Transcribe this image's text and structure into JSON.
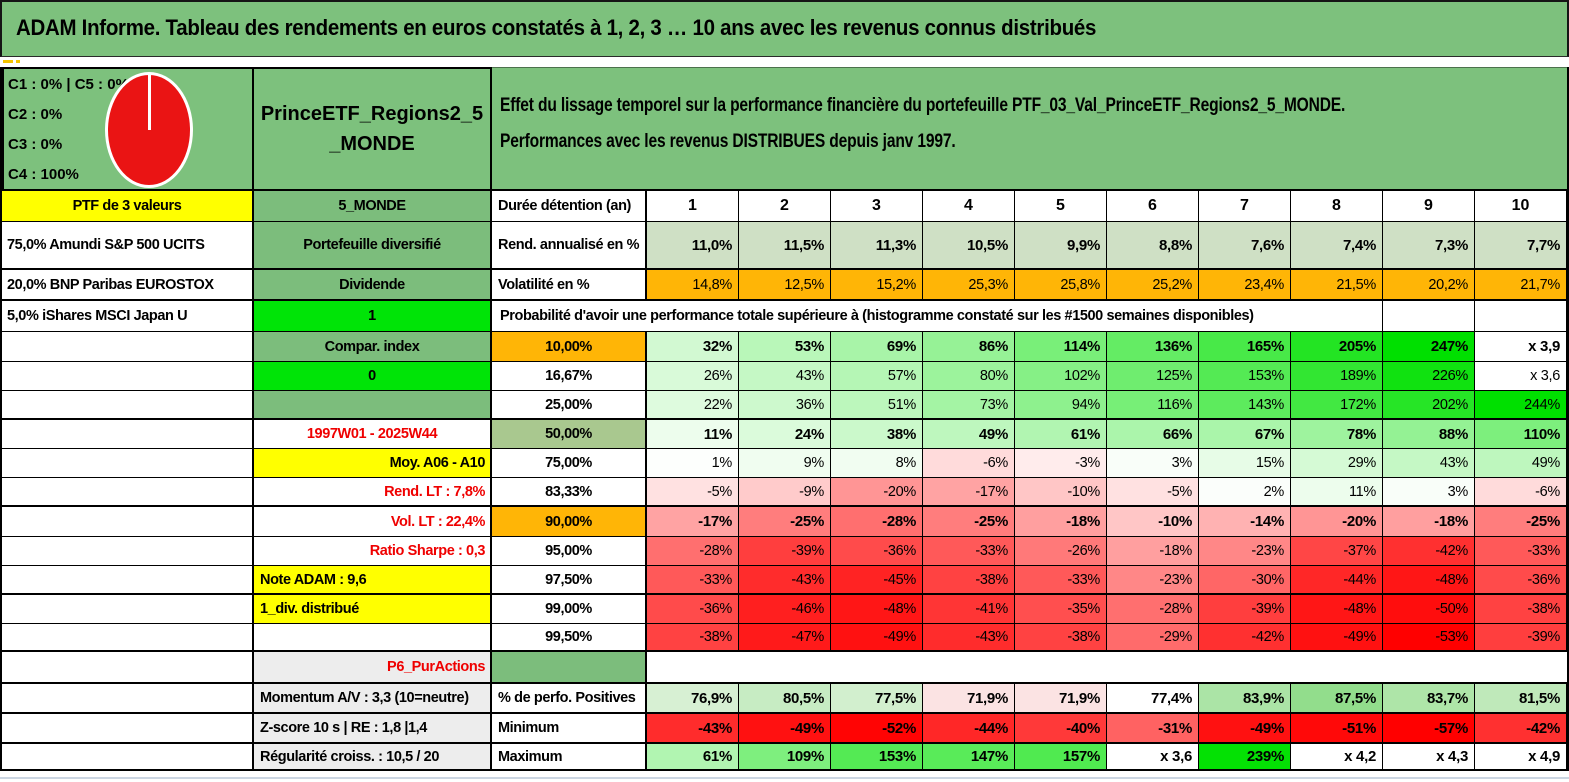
{
  "palette": {
    "header_green": "#7dc17d",
    "sage": "#7cbd7c",
    "sage50": "#a9c88f",
    "bright": "#00e407",
    "yellow": "#ffff00",
    "orange": "#ffb506",
    "gray": "#ededed",
    "rend_row": "#cfe0c5",
    "red_text": "#ef0000",
    "pie_red": "#ea1414",
    "max_green": "#00e000",
    "max_red": "#ff0000"
  },
  "title": "ADAM Informe. Tableau des rendements en euros constatés à 1, 2, 3 … 10 ans avec les revenus connus distribués",
  "header": {
    "allocations": [
      "C1 : 0% | C5 : 0%",
      "C2 : 0%",
      "C3 : 0%",
      "C4 : 100%"
    ],
    "pie": {
      "slices": [
        {
          "label": "C4",
          "value": "100%"
        }
      ],
      "color": "#ea1414"
    },
    "portfolio": "PrinceETF_Regions2_5_MONDE",
    "description": [
      "Effet du lissage temporel sur la performance financière du portefeuille PTF_03_Val_PrinceETF_Regions2_5_MONDE.",
      "Performances avec les revenus DISTRIBUES depuis janv 1997."
    ]
  },
  "rows": [
    {
      "type": "header",
      "a": {
        "t": "PTF de 3 valeurs",
        "bg": "yellow",
        "al": "c"
      },
      "b": {
        "t": "5_MONDE",
        "bg": "sage"
      },
      "c": {
        "t": "Durée détention (an)"
      },
      "values": [
        "1",
        "2",
        "3",
        "4",
        "5",
        "6",
        "7",
        "8",
        "9",
        "10"
      ]
    },
    {
      "type": "uniform",
      "cellbg": "rend_row",
      "bold": true,
      "a": {
        "t": "75,0% Amundi S&P 500 UCITS"
      },
      "b": {
        "t": "Portefeuille diversifié",
        "bg": "sage"
      },
      "c": {
        "t": "Rend. annualisé en %"
      },
      "values": [
        "11,0%",
        "11,5%",
        "11,3%",
        "10,5%",
        "9,9%",
        "8,8%",
        "7,6%",
        "7,4%",
        "7,3%",
        "7,7%"
      ]
    },
    {
      "type": "uniform",
      "cellbg": "orange",
      "bold": false,
      "a": {
        "t": "20,0% BNP Paribas EUROSTOX"
      },
      "b": {
        "t": "Dividende",
        "bg": "sage"
      },
      "c": {
        "t": "Volatilité en %"
      },
      "values": [
        "14,8%",
        "12,5%",
        "15,2%",
        "25,3%",
        "25,8%",
        "25,2%",
        "23,4%",
        "21,5%",
        "20,2%",
        "21,7%"
      ]
    },
    {
      "type": "banner",
      "a": {
        "t": "5,0% iShares MSCI Japan U"
      },
      "b": {
        "t": "1",
        "bg": "bright",
        "corner": true
      },
      "banner": "Probabilité d'avoir une performance totale supérieure à (histogramme constaté sur les #1500 semaines disponibles)"
    },
    {
      "type": "scale",
      "bold": true,
      "b": {
        "t": "Compar. index",
        "bg": "sage"
      },
      "c": {
        "t": "10,00%",
        "bg": "orange",
        "al": "c"
      },
      "values": [
        "32%",
        "53%",
        "69%",
        "86%",
        "114%",
        "136%",
        "165%",
        "205%",
        "247%",
        "x 3,9"
      ]
    },
    {
      "type": "scale",
      "b": {
        "t": "0",
        "bg": "bright",
        "corner": true
      },
      "c": {
        "t": "16,67%",
        "al": "c"
      },
      "values": [
        "26%",
        "43%",
        "57%",
        "80%",
        "102%",
        "125%",
        "153%",
        "189%",
        "226%",
        "x 3,6"
      ]
    },
    {
      "type": "scale",
      "b": {
        "t": "",
        "bg": "sage"
      },
      "c": {
        "t": "25,00%",
        "al": "c"
      },
      "values": [
        "22%",
        "36%",
        "51%",
        "73%",
        "94%",
        "116%",
        "143%",
        "172%",
        "202%",
        "244%"
      ]
    },
    {
      "type": "scale",
      "bold": true,
      "b": {
        "t": "1997W01 - 2025W44",
        "fg": "red"
      },
      "c": {
        "t": "50,00%",
        "bg": "sage50",
        "al": "c"
      },
      "values": [
        "11%",
        "24%",
        "38%",
        "49%",
        "61%",
        "66%",
        "67%",
        "78%",
        "88%",
        "110%"
      ]
    },
    {
      "type": "scale",
      "b": {
        "t": "Moy. A06 - A10",
        "bg": "yellow",
        "al": "r"
      },
      "c": {
        "t": "75,00%",
        "al": "c"
      },
      "values": [
        "1%",
        "9%",
        "8%",
        "-6%",
        "-3%",
        "3%",
        "15%",
        "29%",
        "43%",
        "49%"
      ]
    },
    {
      "type": "scale",
      "b": {
        "t": "Rend. LT : 7,8%",
        "fg": "red",
        "al": "r"
      },
      "c": {
        "t": "83,33%",
        "al": "c"
      },
      "values": [
        "-5%",
        "-9%",
        "-20%",
        "-17%",
        "-10%",
        "-5%",
        "2%",
        "11%",
        "3%",
        "-6%"
      ]
    },
    {
      "type": "scale",
      "bold": true,
      "b": {
        "t": "Vol. LT : 22,4%",
        "fg": "red",
        "al": "r"
      },
      "c": {
        "t": "90,00%",
        "bg": "orange",
        "al": "c"
      },
      "values": [
        "-17%",
        "-25%",
        "-28%",
        "-25%",
        "-18%",
        "-10%",
        "-14%",
        "-20%",
        "-18%",
        "-25%"
      ]
    },
    {
      "type": "scale",
      "b": {
        "t": "Ratio Sharpe : 0,3",
        "fg": "red",
        "al": "r"
      },
      "c": {
        "t": "95,00%",
        "al": "c"
      },
      "values": [
        "-28%",
        "-39%",
        "-36%",
        "-33%",
        "-26%",
        "-18%",
        "-23%",
        "-37%",
        "-42%",
        "-33%"
      ]
    },
    {
      "type": "scale",
      "b": {
        "t": "Note ADAM : 9,6",
        "bg": "yellow",
        "al": "l"
      },
      "c": {
        "t": "97,50%",
        "al": "c"
      },
      "values": [
        "-33%",
        "-43%",
        "-45%",
        "-38%",
        "-33%",
        "-23%",
        "-30%",
        "-44%",
        "-48%",
        "-36%"
      ]
    },
    {
      "type": "scale",
      "b": {
        "t": "1_div. distribué",
        "bg": "yellow",
        "al": "l"
      },
      "c": {
        "t": "99,00%",
        "al": "c"
      },
      "values": [
        "-36%",
        "-46%",
        "-48%",
        "-41%",
        "-35%",
        "-28%",
        "-39%",
        "-48%",
        "-50%",
        "-38%"
      ]
    },
    {
      "type": "scale",
      "b": {
        "t": ""
      },
      "c": {
        "t": "99,50%",
        "al": "c"
      },
      "values": [
        "-38%",
        "-47%",
        "-49%",
        "-43%",
        "-38%",
        "-29%",
        "-42%",
        "-49%",
        "-53%",
        "-39%"
      ]
    },
    {
      "type": "empty",
      "b": {
        "t": "P6_PurActions",
        "bg": "gray",
        "fg": "red",
        "al": "r"
      },
      "c": {
        "t": "",
        "bg": "sage"
      }
    },
    {
      "type": "explicit",
      "bold": true,
      "b": {
        "t": "Momentum A/V : 3,3 (10=neutre)",
        "bg": "gray",
        "al": "l"
      },
      "c": {
        "t": "% de perfo. Positives"
      },
      "values": [
        "76,9%",
        "80,5%",
        "77,5%",
        "71,9%",
        "71,9%",
        "77,4%",
        "83,9%",
        "87,5%",
        "83,7%",
        "81,5%"
      ],
      "bgs": [
        "#d7f0d3",
        "#c7ecc3",
        "#d2efce",
        "#fbe3e3",
        "#fbe3e3",
        "#ffffff",
        "#abe4a6",
        "#92dd8c",
        "#aee5a8",
        "#bfe9ba"
      ]
    },
    {
      "type": "scale",
      "bold": true,
      "b": {
        "t": "Z-score 10 s | RE : 1,8 |1,4",
        "bg": "gray",
        "al": "l"
      },
      "c": {
        "t": "Minimum"
      },
      "values": [
        "-43%",
        "-49%",
        "-52%",
        "-44%",
        "-40%",
        "-31%",
        "-49%",
        "-51%",
        "-57%",
        "-42%"
      ]
    },
    {
      "type": "scale",
      "bold": true,
      "b": {
        "t": "Régularité croiss. : 10,5 / 20",
        "bg": "gray",
        "al": "l"
      },
      "c": {
        "t": "Maximum"
      },
      "values": [
        "61%",
        "109%",
        "153%",
        "147%",
        "157%",
        "x 3,6",
        "239%",
        "x 4,2",
        "x 4,3",
        "x 4,9"
      ]
    }
  ]
}
